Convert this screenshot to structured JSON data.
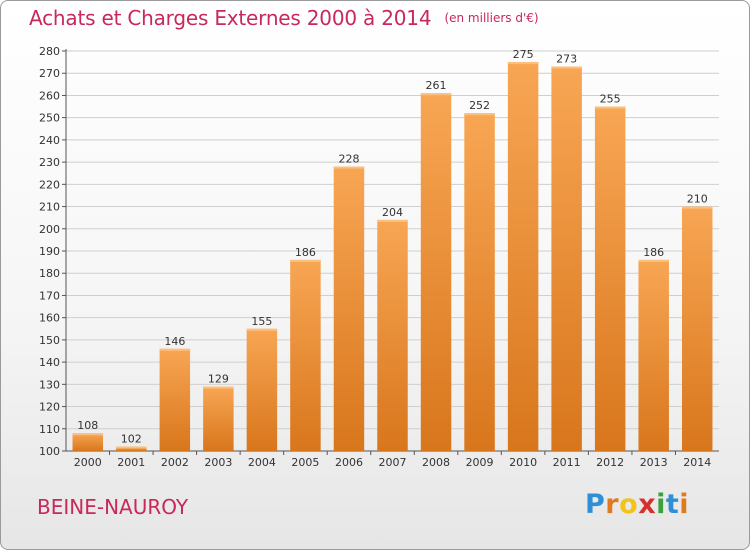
{
  "title": "Achats et Charges Externes 2000 à 2014",
  "unit": "(en milliers d'€)",
  "commune": "BEINE-NAUROY",
  "logo": {
    "letters": [
      "P",
      "r",
      "o",
      "x",
      "i",
      "t",
      "i"
    ],
    "colors": [
      "#2f8fd6",
      "#e07a1e",
      "#f2c318",
      "#d6302e",
      "#3aa23a",
      "#2f8fd6",
      "#e07a1e"
    ]
  },
  "colors": {
    "bar_top": "#f8a654",
    "bar_bottom": "#d8761c",
    "title": "#c8285a"
  },
  "chart_data": {
    "type": "bar",
    "categories": [
      "2000",
      "2001",
      "2002",
      "2003",
      "2004",
      "2005",
      "2006",
      "2007",
      "2008",
      "2009",
      "2010",
      "2011",
      "2012",
      "2013",
      "2014"
    ],
    "values": [
      108,
      102,
      146,
      129,
      155,
      186,
      228,
      204,
      261,
      252,
      275,
      273,
      255,
      186,
      210
    ],
    "yticks": [
      100,
      110,
      120,
      130,
      140,
      150,
      160,
      170,
      180,
      190,
      200,
      210,
      220,
      230,
      240,
      250,
      260,
      270,
      280
    ],
    "ylim": [
      100,
      280
    ],
    "grid": true,
    "xlabel": "",
    "ylabel": ""
  }
}
